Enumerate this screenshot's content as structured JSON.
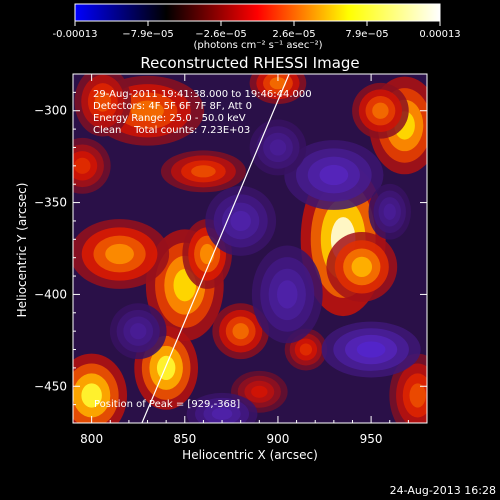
{
  "colorbar": {
    "tick_labels": [
      "-0.00013",
      "−7.9e−05",
      "−2.6e−05",
      "2.6e−05",
      "7.9e−05",
      "0.00013"
    ],
    "unit_label": "(photons cm⁻² s⁻¹ asec⁻²)",
    "range": [
      -0.00013,
      0.00013
    ],
    "colors": [
      "#0000ff",
      "#000000",
      "#ff0000",
      "#ffff00",
      "#ffffff"
    ]
  },
  "header": {
    "info_lines": [
      "29-Aug-2011 19:41:38.000 to 19:46:44.000",
      "Detectors: 4F 5F 6F 7F 8F, Att 0",
      "Energy Range: 25.0 - 50.0 keV",
      "Clean    Total counts: 7.23E+03"
    ]
  },
  "footer": {
    "peak_label": "Position of Peak = [929,-368]",
    "date_stamp": "24-Aug-2013 16:28"
  },
  "chart_data": {
    "type": "heatmap",
    "title": "Reconstructed RHESSI Image",
    "xlabel": "Heliocentric X (arcsec)",
    "ylabel": "Heliocentric Y (arcsec)",
    "xlim": [
      790,
      980
    ],
    "ylim": [
      -470,
      -280
    ],
    "xticks": [
      800,
      850,
      900,
      950
    ],
    "yticks": [
      -300,
      -350,
      -400,
      -450
    ],
    "ytick_labels": [
      "−300",
      "−350",
      "−400",
      "−450"
    ],
    "peak_position": [
      929,
      -368
    ],
    "limb_line": {
      "x": [
        827,
        906
      ],
      "y": [
        -470,
        -280
      ]
    },
    "sources": [
      {
        "x": 935,
        "y": -370,
        "value": 0.00013,
        "sx": 12,
        "sy": 22
      },
      {
        "x": 945,
        "y": -385,
        "value": 0.0001,
        "sx": 10,
        "sy": 10
      },
      {
        "x": 968,
        "y": -308,
        "value": 0.00011,
        "sx": 10,
        "sy": 14
      },
      {
        "x": 955,
        "y": -300,
        "value": 8e-05,
        "sx": 8,
        "sy": 8
      },
      {
        "x": 840,
        "y": -440,
        "value": 0.00012,
        "sx": 9,
        "sy": 12
      },
      {
        "x": 850,
        "y": -395,
        "value": 0.00011,
        "sx": 11,
        "sy": 16
      },
      {
        "x": 862,
        "y": -378,
        "value": 9e-05,
        "sx": 7,
        "sy": 10
      },
      {
        "x": 815,
        "y": -378,
        "value": 9e-05,
        "sx": 14,
        "sy": 10
      },
      {
        "x": 830,
        "y": -300,
        "value": 8e-05,
        "sx": 16,
        "sy": 10
      },
      {
        "x": 806,
        "y": -295,
        "value": 7e-05,
        "sx": 8,
        "sy": 10
      },
      {
        "x": 800,
        "y": -455,
        "value": 0.00012,
        "sx": 10,
        "sy": 12
      },
      {
        "x": 860,
        "y": -333,
        "value": 7e-05,
        "sx": 12,
        "sy": 6
      },
      {
        "x": 880,
        "y": -420,
        "value": 8e-05,
        "sx": 8,
        "sy": 8
      },
      {
        "x": 900,
        "y": -285,
        "value": 8e-05,
        "sx": 8,
        "sy": 6
      },
      {
        "x": 915,
        "y": -430,
        "value": 6e-05,
        "sx": 6,
        "sy": 6
      },
      {
        "x": 975,
        "y": -455,
        "value": 7e-05,
        "sx": 8,
        "sy": 12
      },
      {
        "x": 890,
        "y": -453,
        "value": 5e-05,
        "sx": 8,
        "sy": 6
      },
      {
        "x": 795,
        "y": -330,
        "value": 6e-05,
        "sx": 8,
        "sy": 8
      },
      {
        "x": 930,
        "y": -335,
        "value": -6e-05,
        "sx": 14,
        "sy": 10
      },
      {
        "x": 905,
        "y": -400,
        "value": -5e-05,
        "sx": 10,
        "sy": 14
      },
      {
        "x": 950,
        "y": -430,
        "value": -7e-05,
        "sx": 14,
        "sy": 8
      },
      {
        "x": 880,
        "y": -360,
        "value": -5e-05,
        "sx": 10,
        "sy": 10
      },
      {
        "x": 900,
        "y": -320,
        "value": -4e-05,
        "sx": 8,
        "sy": 8
      },
      {
        "x": 825,
        "y": -420,
        "value": -4e-05,
        "sx": 8,
        "sy": 8
      },
      {
        "x": 870,
        "y": -465,
        "value": -5e-05,
        "sx": 10,
        "sy": 6
      },
      {
        "x": 960,
        "y": -355,
        "value": -4e-05,
        "sx": 6,
        "sy": 8
      }
    ]
  }
}
